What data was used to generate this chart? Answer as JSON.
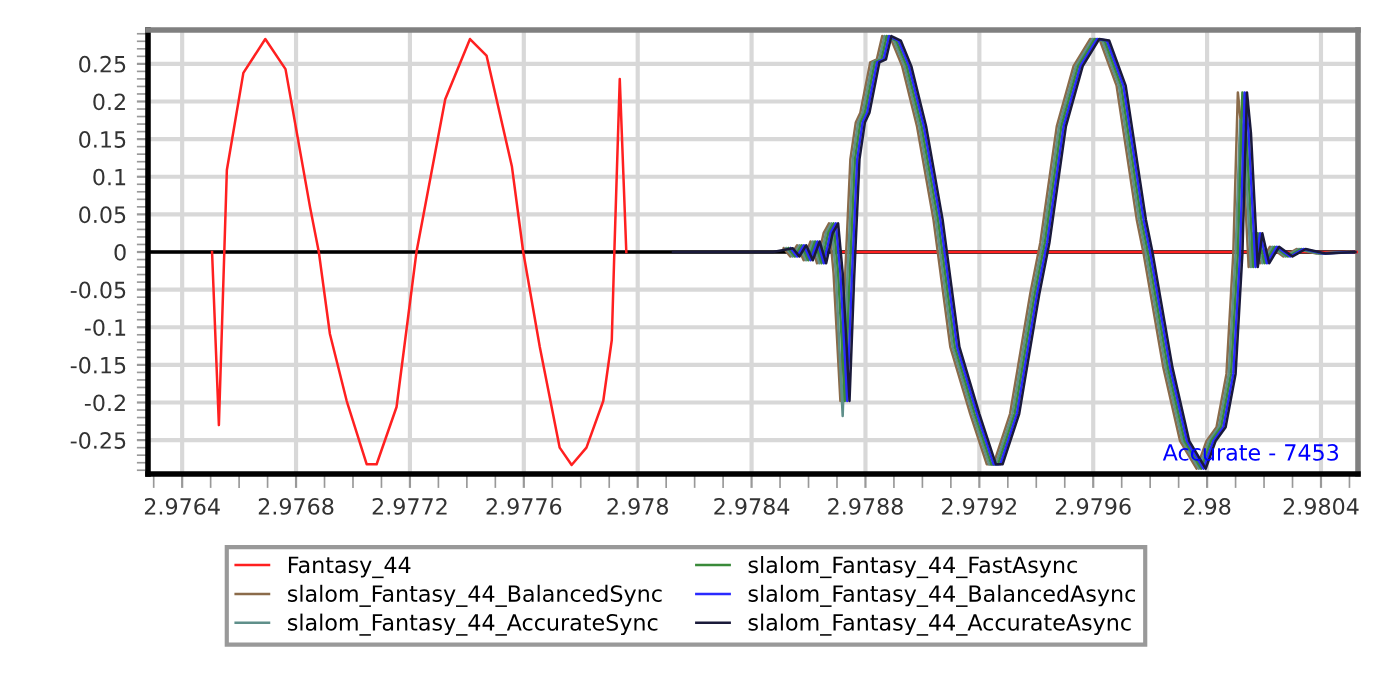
{
  "chart_data": {
    "type": "line",
    "xlim": [
      2.97628,
      2.98053
    ],
    "ylim": [
      -0.295,
      0.295
    ],
    "xticks": [
      2.9764,
      2.9768,
      2.9772,
      2.9776,
      2.978,
      2.9784,
      2.9788,
      2.9792,
      2.9796,
      2.98,
      2.9804
    ],
    "yticks": [
      -0.25,
      -0.2,
      -0.15,
      -0.1,
      -0.05,
      0,
      0.05,
      0.1,
      0.15,
      0.2,
      0.25
    ],
    "grid": true,
    "legend": "bottom",
    "marker": "none",
    "line_style": "solid",
    "ref_lines": [
      {
        "axis": "y",
        "value": 0,
        "color": "#000000"
      }
    ],
    "annotations": [
      "Accurate - 7453"
    ],
    "series": [
      {
        "name": "Fantasy_44",
        "color": "#ff2020",
        "x": [
          2.976505,
          2.976529,
          2.976557,
          2.976615,
          2.976692,
          2.976763,
          2.976849,
          2.97688,
          2.976919,
          2.976978,
          2.977048,
          2.977083,
          2.977153,
          2.977223,
          2.977324,
          2.977411,
          2.977469,
          2.977558,
          2.977598,
          2.977656,
          2.977726,
          2.977768,
          2.97782,
          2.977879,
          2.977909,
          2.977918,
          2.977937,
          2.97796,
          2.97833,
          2.978709,
          2.98053
        ],
        "values": [
          0,
          -0.23,
          0.109,
          0.238,
          0.283,
          0.243,
          0.06,
          0,
          -0.109,
          -0.198,
          -0.282,
          -0.282,
          -0.206,
          0,
          0.203,
          0.283,
          0.261,
          0.114,
          0,
          -0.126,
          -0.26,
          -0.283,
          -0.26,
          -0.198,
          -0.117,
          0,
          0.23,
          0,
          null,
          0,
          0
        ]
      },
      {
        "name": "slalom_Fantasy_44_BalancedSync",
        "color": "#8b6b4a",
        "x": [
          2.978513,
          2.978536,
          2.97856,
          2.978583,
          2.978607,
          2.97863,
          2.978653,
          2.978672,
          2.978688,
          2.978712,
          2.978728,
          2.978747,
          2.978766,
          2.978782,
          2.978817,
          2.97884,
          2.978859,
          2.978892,
          2.978929,
          2.978981,
          2.979039,
          2.979098,
          2.979168,
          2.979226,
          2.97925,
          2.979308,
          2.979379,
          2.979414,
          2.979472,
          2.979531,
          2.979589,
          2.979624,
          2.979682,
          2.979753,
          2.979776,
          2.979846,
          2.979905,
          2.979963,
          2.979998,
          2.980033,
          2.980068,
          2.980092,
          2.980108,
          2.980122,
          2.980146,
          2.980162,
          2.980186,
          2.980221,
          2.980268,
          2.980314,
          2.980384,
          2.980489
        ],
        "values": [
          0.005,
          -0.006,
          0.009,
          -0.011,
          0.014,
          -0.015,
          0.025,
          0.038,
          -0.028,
          -0.198,
          -0.037,
          0.123,
          0.172,
          0.185,
          0.252,
          0.256,
          0.287,
          0.281,
          0.247,
          0.167,
          0.043,
          -0.126,
          -0.215,
          -0.282,
          -0.282,
          -0.215,
          -0.055,
          0.012,
          0.167,
          0.247,
          0.283,
          0.281,
          0.221,
          0.043,
          0,
          -0.153,
          -0.251,
          -0.288,
          -0.251,
          -0.233,
          -0.162,
          -0.002,
          0.212,
          0.158,
          -0.02,
          0.025,
          -0.015,
          0.007,
          -0.006,
          0.004,
          -0.002,
          0
        ]
      },
      {
        "name": "slalom_Fantasy_44_AccurateSync",
        "color": "#5f8f8a",
        "x": [
          2.978521,
          2.978544,
          2.978568,
          2.978591,
          2.978615,
          2.978638,
          2.978661,
          2.97868,
          2.978696,
          2.97872,
          2.978736,
          2.978755,
          2.978774,
          2.97879,
          2.978825,
          2.978848,
          2.978867,
          2.9789,
          2.978937,
          2.978989,
          2.979047,
          2.979106,
          2.979176,
          2.979234,
          2.979258,
          2.979316,
          2.979387,
          2.979422,
          2.97948,
          2.979539,
          2.979597,
          2.979632,
          2.97969,
          2.979761,
          2.979784,
          2.979854,
          2.979913,
          2.979971,
          2.980006,
          2.980041,
          2.980076,
          2.9801,
          2.980116,
          2.98013,
          2.980154,
          2.98017,
          2.980194,
          2.980229,
          2.980276,
          2.980322,
          2.980392,
          2.980497
        ],
        "values": [
          0.005,
          -0.006,
          0.009,
          -0.011,
          0.014,
          -0.015,
          0.025,
          0.038,
          -0.028,
          -0.218,
          -0.037,
          0.123,
          0.172,
          0.185,
          0.252,
          0.256,
          0.287,
          0.281,
          0.247,
          0.167,
          0.043,
          -0.126,
          -0.215,
          -0.282,
          -0.282,
          -0.215,
          -0.055,
          0.012,
          0.167,
          0.247,
          0.283,
          0.281,
          0.221,
          0.043,
          0,
          -0.153,
          -0.251,
          -0.288,
          -0.251,
          -0.233,
          -0.162,
          -0.002,
          0.175,
          0.158,
          -0.02,
          0.025,
          -0.015,
          0.007,
          -0.006,
          0.004,
          -0.002,
          0
        ]
      },
      {
        "name": "slalom_Fantasy_44_FastAsync",
        "color": "#3a8a3a",
        "x": [
          2.978529,
          2.978552,
          2.978576,
          2.978599,
          2.978623,
          2.978646,
          2.978669,
          2.978688,
          2.978704,
          2.978728,
          2.978744,
          2.978763,
          2.978782,
          2.978798,
          2.978833,
          2.978856,
          2.978875,
          2.978908,
          2.978945,
          2.978997,
          2.979055,
          2.979114,
          2.979184,
          2.979242,
          2.979266,
          2.979324,
          2.979395,
          2.97943,
          2.979488,
          2.979547,
          2.979605,
          2.97964,
          2.979698,
          2.979769,
          2.979792,
          2.979862,
          2.979921,
          2.979979,
          2.980014,
          2.980049,
          2.980084,
          2.980108,
          2.980124,
          2.980138,
          2.980162,
          2.980178,
          2.980202,
          2.980237,
          2.980284,
          2.98033,
          2.9804,
          2.980505
        ],
        "values": [
          0.005,
          -0.006,
          0.009,
          -0.011,
          0.014,
          -0.015,
          0.025,
          0.038,
          -0.028,
          -0.198,
          -0.037,
          0.123,
          0.172,
          0.185,
          0.252,
          0.256,
          0.287,
          0.281,
          0.247,
          0.167,
          0.043,
          -0.126,
          -0.215,
          -0.282,
          -0.282,
          -0.215,
          -0.055,
          0.012,
          0.167,
          0.247,
          0.283,
          0.281,
          0.221,
          0.043,
          0,
          -0.153,
          -0.251,
          -0.288,
          -0.251,
          -0.233,
          -0.162,
          -0.002,
          0.212,
          0.158,
          -0.02,
          0.025,
          -0.015,
          0.007,
          -0.006,
          0.004,
          -0.002,
          0
        ]
      },
      {
        "name": "slalom_Fantasy_44_BalancedAsync",
        "color": "#2a2aff",
        "x": [
          2.978537,
          2.97856,
          2.978584,
          2.978607,
          2.978631,
          2.978654,
          2.978677,
          2.978696,
          2.978712,
          2.978736,
          2.978752,
          2.978771,
          2.97879,
          2.978806,
          2.978841,
          2.978864,
          2.978883,
          2.978916,
          2.978953,
          2.979005,
          2.979063,
          2.979122,
          2.979192,
          2.97925,
          2.979274,
          2.979332,
          2.979403,
          2.979438,
          2.979496,
          2.979555,
          2.979613,
          2.979648,
          2.979706,
          2.979777,
          2.9798,
          2.97987,
          2.979929,
          2.979987,
          2.980022,
          2.980057,
          2.980092,
          2.980116,
          2.980132,
          2.980146,
          2.98017,
          2.980186,
          2.98021,
          2.980245,
          2.980292,
          2.980338,
          2.980408,
          2.980513
        ],
        "values": [
          0.005,
          -0.006,
          0.009,
          -0.011,
          0.014,
          -0.015,
          0.025,
          0.038,
          -0.028,
          -0.198,
          -0.037,
          0.123,
          0.172,
          0.185,
          0.252,
          0.256,
          0.287,
          0.281,
          0.247,
          0.167,
          0.043,
          -0.126,
          -0.215,
          -0.282,
          -0.282,
          -0.215,
          -0.055,
          0.012,
          0.167,
          0.247,
          0.283,
          0.281,
          0.221,
          0.043,
          0,
          -0.153,
          -0.251,
          -0.288,
          -0.251,
          -0.233,
          -0.162,
          -0.002,
          0.212,
          0.158,
          -0.02,
          0.025,
          -0.015,
          0.007,
          -0.006,
          0.004,
          -0.002,
          0
        ]
      },
      {
        "name": "slalom_Fantasy_44_AccurateAsync",
        "color": "#1a1a3a",
        "x": [
          2.978124,
          2.978475,
          2.978545,
          2.978568,
          2.978592,
          2.978615,
          2.978639,
          2.978662,
          2.978685,
          2.978704,
          2.97872,
          2.978744,
          2.97876,
          2.978779,
          2.978798,
          2.978814,
          2.978849,
          2.978872,
          2.978891,
          2.978924,
          2.978961,
          2.979013,
          2.979071,
          2.97913,
          2.9792,
          2.979258,
          2.979282,
          2.97934,
          2.979411,
          2.979446,
          2.979504,
          2.979563,
          2.979621,
          2.979656,
          2.979714,
          2.979785,
          2.979808,
          2.979878,
          2.979937,
          2.979995,
          2.98003,
          2.980065,
          2.9801,
          2.980124,
          2.98014,
          2.980154,
          2.980178,
          2.980194,
          2.980218,
          2.980253,
          2.9803,
          2.980346,
          2.980416,
          2.980521
        ],
        "values": [
          0,
          0,
          0.005,
          -0.006,
          0.009,
          -0.011,
          0.014,
          -0.015,
          0.025,
          0.038,
          -0.028,
          -0.198,
          -0.037,
          0.123,
          0.172,
          0.185,
          0.252,
          0.256,
          0.287,
          0.281,
          0.247,
          0.167,
          0.043,
          -0.126,
          -0.215,
          -0.282,
          -0.282,
          -0.215,
          -0.055,
          0.012,
          0.167,
          0.247,
          0.283,
          0.281,
          0.221,
          0.043,
          0,
          -0.153,
          -0.251,
          -0.288,
          -0.251,
          -0.233,
          -0.162,
          -0.002,
          0.212,
          0.158,
          -0.02,
          0.025,
          -0.015,
          0.007,
          -0.006,
          0.004,
          -0.002,
          0
        ]
      }
    ]
  }
}
